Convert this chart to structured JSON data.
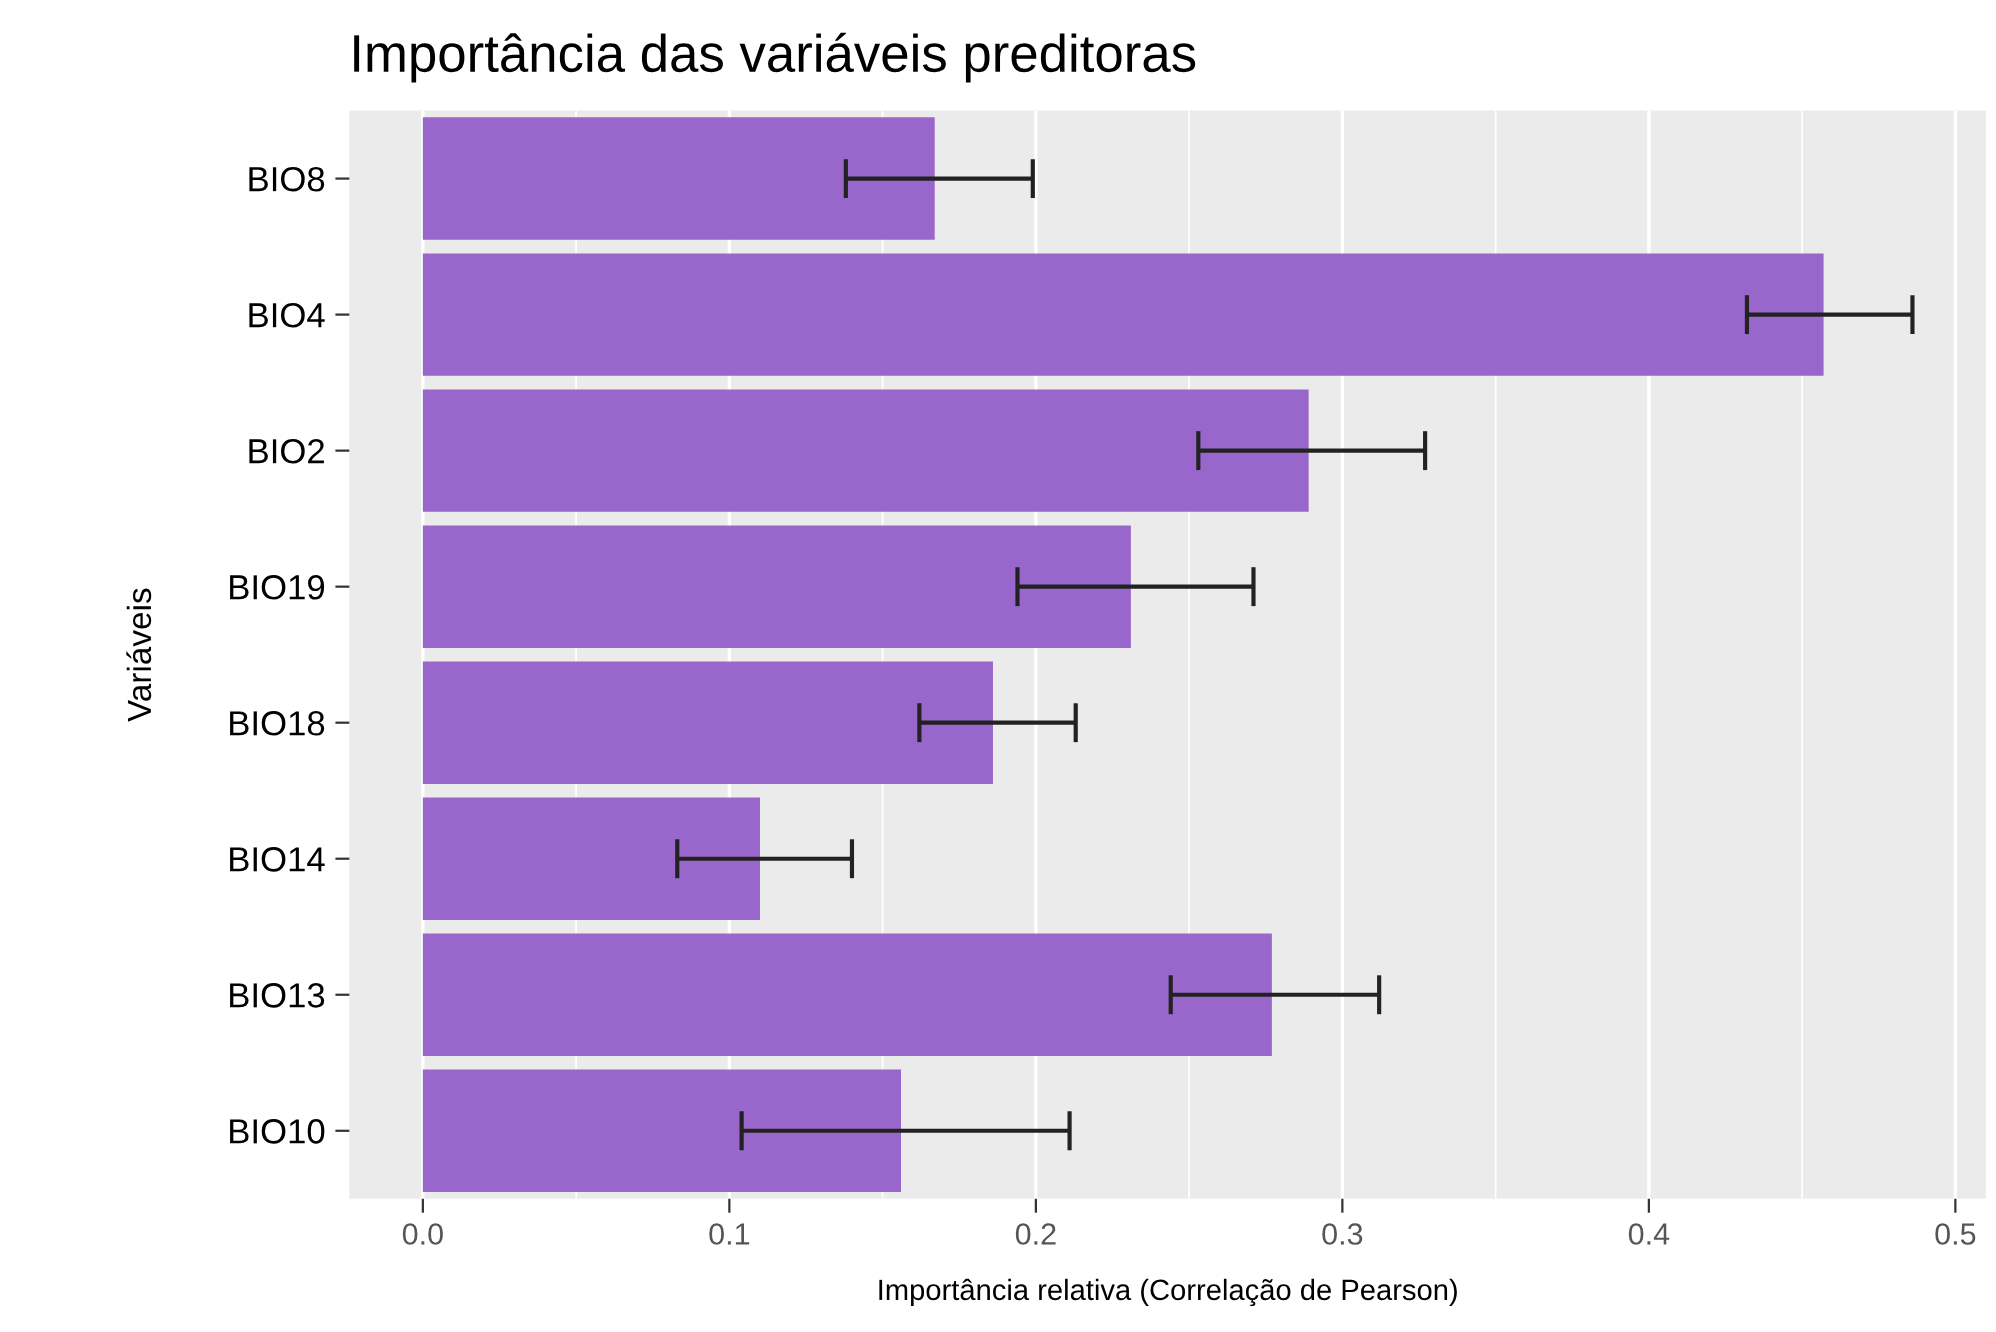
{
  "chart_data": {
    "type": "bar",
    "orientation": "horizontal",
    "title": "Importância das variáveis preditoras",
    "xlabel": "Importância relativa (Correlação de Pearson)",
    "ylabel": "Variáveis",
    "categories": [
      "BIO8",
      "BIO4",
      "BIO2",
      "BIO19",
      "BIO18",
      "BIO14",
      "BIO13",
      "BIO10"
    ],
    "values": [
      0.167,
      0.457,
      0.289,
      0.231,
      0.186,
      0.11,
      0.277,
      0.156
    ],
    "errors": [
      [
        0.138,
        0.199
      ],
      [
        0.432,
        0.486
      ],
      [
        0.253,
        0.327
      ],
      [
        0.194,
        0.271
      ],
      [
        0.162,
        0.213
      ],
      [
        0.083,
        0.14
      ],
      [
        0.244,
        0.312
      ],
      [
        0.104,
        0.211
      ]
    ],
    "color": "#9966cc",
    "xlim": [
      -0.024,
      0.51
    ],
    "xticks": [
      {
        "value": 0,
        "label": "0.0"
      },
      {
        "value": 0.1,
        "label": "0.1"
      },
      {
        "value": 0.2,
        "label": "0.2"
      },
      {
        "value": 0.3,
        "label": "0.3"
      },
      {
        "value": 0.4,
        "label": "0.4"
      },
      {
        "value": 0.5,
        "label": "0.5"
      }
    ],
    "grid": "x",
    "legend": false
  }
}
